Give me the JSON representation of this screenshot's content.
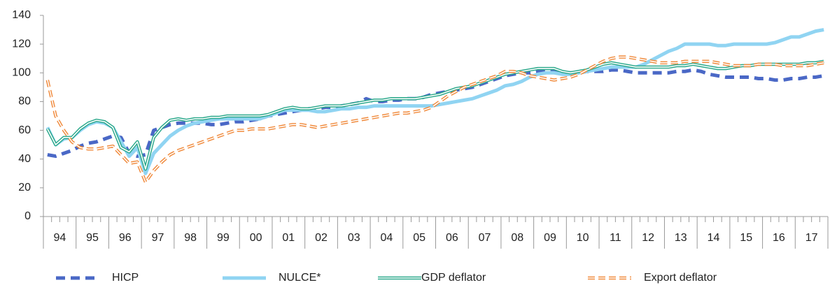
{
  "chart_data": {
    "type": "line",
    "categories": [
      "94",
      null,
      null,
      null,
      "95",
      null,
      null,
      null,
      "96",
      null,
      null,
      null,
      "97",
      null,
      null,
      null,
      "98",
      null,
      null,
      null,
      "99",
      null,
      null,
      null,
      "00",
      null,
      null,
      null,
      "01",
      null,
      null,
      null,
      "02",
      null,
      null,
      null,
      "03",
      null,
      null,
      null,
      "04",
      null,
      null,
      null,
      "05",
      null,
      null,
      null,
      "06",
      null,
      null,
      null,
      "07",
      null,
      null,
      null,
      "08",
      null,
      null,
      null,
      "09",
      null,
      null,
      null,
      "10",
      null,
      null,
      null,
      "11",
      null,
      null,
      null,
      "12",
      null,
      null,
      null,
      "13",
      null,
      null,
      null,
      "14",
      null,
      null,
      null,
      "15",
      null,
      null,
      null,
      "16",
      null,
      null,
      null,
      "17",
      null,
      null,
      null
    ],
    "ylim": [
      0,
      140
    ],
    "yticks": [
      0,
      20,
      40,
      60,
      80,
      100,
      120,
      140
    ],
    "grid": false,
    "legend": "bottom",
    "series": [
      {
        "name": "HICP",
        "color": "#4a68c6",
        "style": "dashed",
        "values": [
          43,
          42,
          44,
          46,
          49,
          51,
          52,
          54,
          56,
          55,
          44,
          42,
          43,
          60,
          62,
          64,
          65,
          65,
          65,
          65,
          64,
          64,
          65,
          66,
          66,
          67,
          68,
          70,
          71,
          72,
          73,
          74,
          75,
          75,
          76,
          76,
          77,
          78,
          79,
          82,
          80,
          80,
          81,
          81,
          82,
          82,
          83,
          85,
          86,
          87,
          88,
          89,
          90,
          92,
          94,
          96,
          98,
          99,
          100,
          100,
          101,
          102,
          101,
          100,
          100,
          100,
          101,
          101,
          101,
          102,
          102,
          101,
          100,
          100,
          100,
          100,
          100,
          101,
          101,
          102,
          101,
          99,
          98,
          97,
          97,
          97,
          97,
          96,
          96,
          95,
          95,
          96,
          96,
          97,
          97,
          98
        ]
      },
      {
        "name": "NULCE*",
        "color": "#90d4f2",
        "style": "solid",
        "values": [
          62,
          50,
          54,
          55,
          60,
          64,
          66,
          65,
          62,
          52,
          42,
          48,
          30,
          44,
          50,
          56,
          60,
          63,
          65,
          66,
          67,
          68,
          68,
          68,
          68,
          68,
          68,
          70,
          72,
          74,
          74,
          74,
          74,
          73,
          73,
          74,
          75,
          75,
          76,
          76,
          77,
          77,
          77,
          77,
          77,
          77,
          77,
          77,
          78,
          79,
          80,
          81,
          82,
          84,
          86,
          88,
          91,
          92,
          94,
          97,
          99,
          100,
          100,
          99,
          99,
          100,
          101,
          102,
          103,
          104,
          104,
          104,
          104,
          106,
          109,
          112,
          115,
          117,
          120,
          120,
          120,
          120,
          119,
          119,
          120,
          120,
          120,
          120,
          120,
          121,
          123,
          125,
          125,
          127,
          129,
          130
        ]
      },
      {
        "name": "GDP deflator",
        "color": "#2aa88a",
        "style": "double",
        "values": [
          61,
          50,
          55,
          55,
          61,
          65,
          67,
          66,
          62,
          48,
          45,
          52,
          33,
          55,
          62,
          67,
          68,
          67,
          68,
          68,
          69,
          69,
          70,
          70,
          70,
          70,
          70,
          71,
          73,
          75,
          76,
          75,
          75,
          76,
          77,
          77,
          77,
          78,
          79,
          80,
          81,
          81,
          82,
          82,
          82,
          82,
          83,
          84,
          85,
          87,
          89,
          90,
          91,
          93,
          95,
          97,
          99,
          100,
          101,
          102,
          103,
          103,
          103,
          101,
          100,
          101,
          102,
          104,
          106,
          107,
          106,
          105,
          104,
          104,
          104,
          104,
          104,
          105,
          105,
          106,
          105,
          104,
          103,
          103,
          104,
          105,
          105,
          106,
          106,
          106,
          106,
          106,
          106,
          107,
          107,
          108
        ]
      },
      {
        "name": "Export deflator",
        "color": "#f08a3c",
        "style": "double-dashed",
        "values": [
          95,
          70,
          60,
          52,
          48,
          47,
          47,
          48,
          49,
          43,
          37,
          38,
          24,
          32,
          38,
          43,
          46,
          48,
          50,
          52,
          54,
          56,
          58,
          60,
          60,
          61,
          61,
          61,
          62,
          63,
          64,
          64,
          63,
          62,
          63,
          64,
          65,
          66,
          67,
          68,
          69,
          70,
          71,
          72,
          72,
          73,
          74,
          76,
          80,
          84,
          87,
          90,
          92,
          94,
          96,
          98,
          101,
          101,
          100,
          98,
          97,
          96,
          95,
          96,
          97,
          99,
          102,
          105,
          108,
          110,
          111,
          111,
          110,
          109,
          108,
          107,
          107,
          107,
          108,
          108,
          108,
          108,
          107,
          106,
          105,
          105,
          105,
          106,
          106,
          106,
          105,
          105,
          105,
          105,
          106,
          107
        ]
      }
    ]
  }
}
